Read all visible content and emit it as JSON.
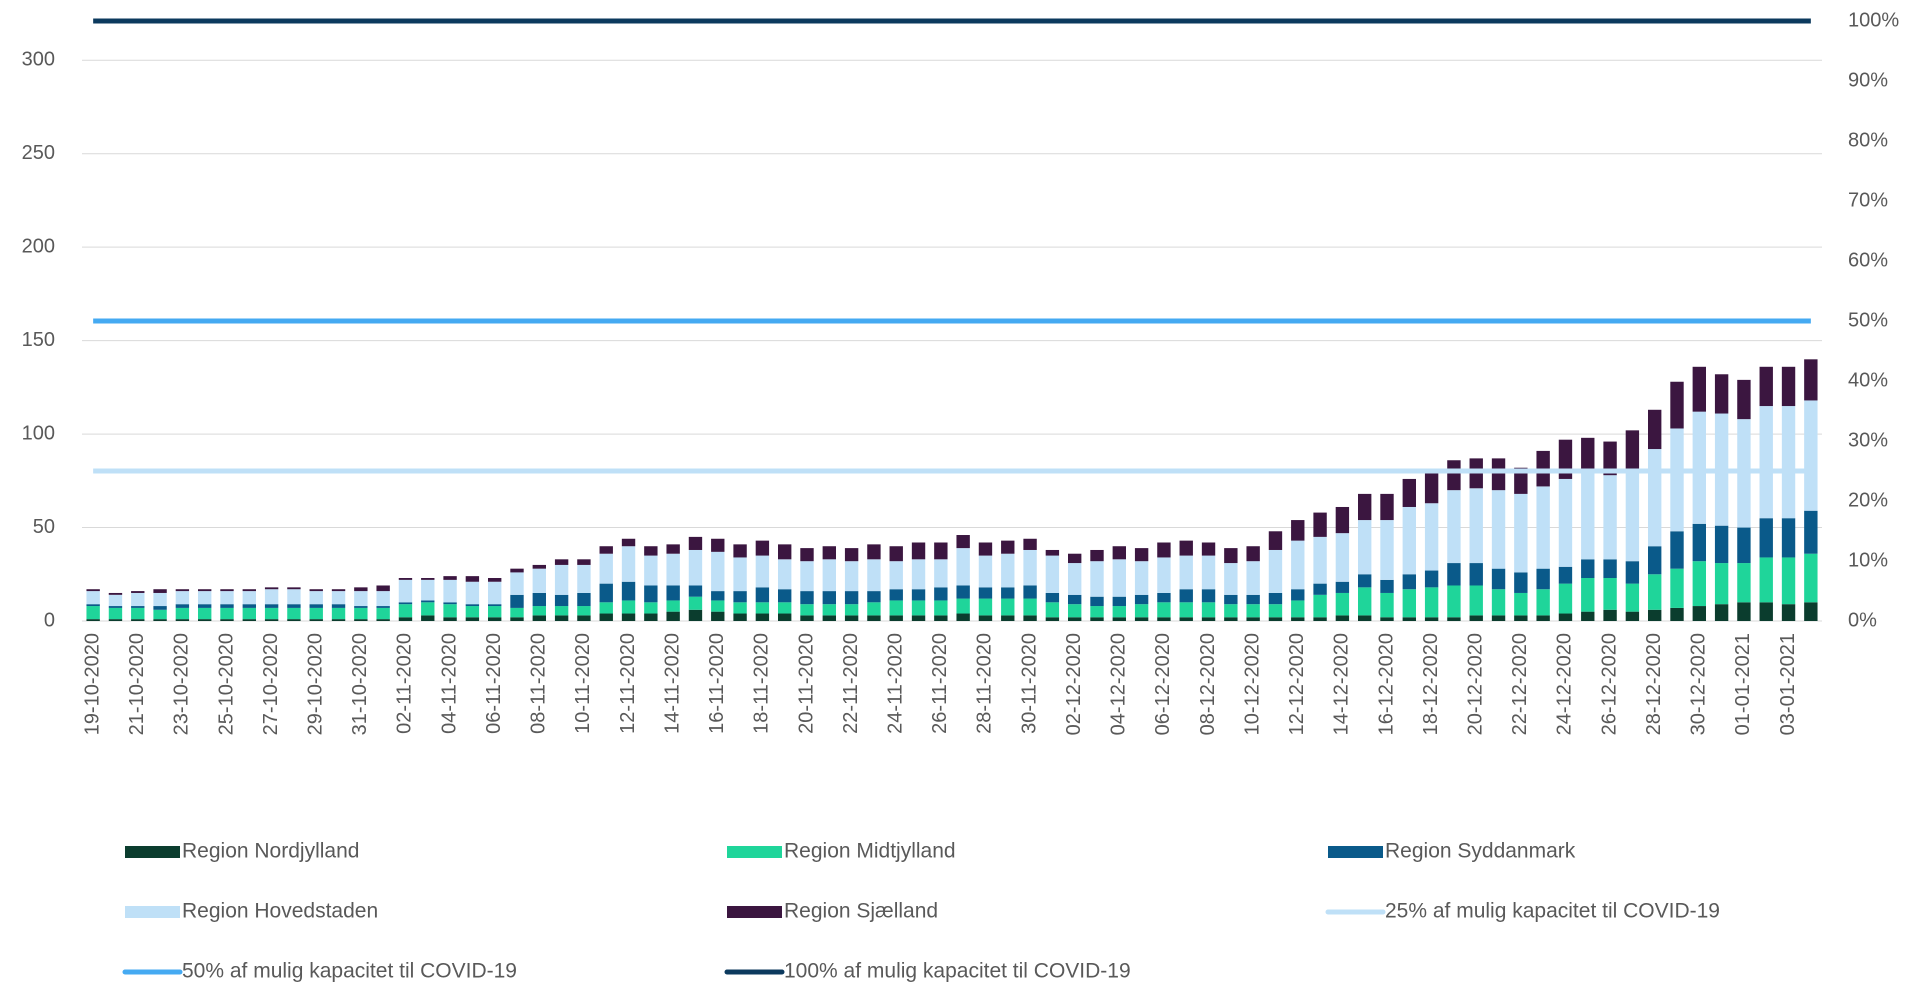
{
  "chart_data": {
    "type": "bar",
    "stacked": true,
    "legend": "bottom",
    "grid": true,
    "categories": [
      "19-10-2020",
      null,
      "21-10-2020",
      null,
      "23-10-2020",
      null,
      "25-10-2020",
      null,
      "27-10-2020",
      null,
      "29-10-2020",
      null,
      "31-10-2020",
      null,
      "02-11-2020",
      null,
      "04-11-2020",
      null,
      "06-11-2020",
      null,
      "08-11-2020",
      null,
      "10-11-2020",
      null,
      "12-11-2020",
      null,
      "14-11-2020",
      null,
      "16-11-2020",
      null,
      "18-11-2020",
      null,
      "20-11-2020",
      null,
      "22-11-2020",
      null,
      "24-11-2020",
      null,
      "26-11-2020",
      null,
      "28-11-2020",
      null,
      "30-11-2020",
      null,
      "02-12-2020",
      null,
      "04-12-2020",
      null,
      "06-12-2020",
      null,
      "08-12-2020",
      null,
      "10-12-2020",
      null,
      "12-12-2020",
      null,
      "14-12-2020",
      null,
      "16-12-2020",
      null,
      "18-12-2020",
      null,
      "20-12-2020",
      null,
      "22-12-2020",
      null,
      "24-12-2020",
      null,
      "26-12-2020",
      null,
      "28-12-2020",
      null,
      "30-12-2020",
      null,
      "01-01-2021",
      null,
      "03-01-2021",
      null
    ],
    "ylim": [
      0,
      321
    ],
    "yticks": [
      0,
      50,
      100,
      150,
      200,
      250,
      300
    ],
    "y2lim": [
      0,
      100
    ],
    "y2ticks": [
      {
        "value": 0,
        "label": "0%"
      },
      {
        "value": 10,
        "label": "10%"
      },
      {
        "value": 20,
        "label": "20%"
      },
      {
        "value": 30,
        "label": "30%"
      },
      {
        "value": 40,
        "label": "40%"
      },
      {
        "value": 50,
        "label": "50%"
      },
      {
        "value": 60,
        "label": "60%"
      },
      {
        "value": 70,
        "label": "70%"
      },
      {
        "value": 80,
        "label": "80%"
      },
      {
        "value": 90,
        "label": "90%"
      },
      {
        "value": 100,
        "label": "100%"
      }
    ],
    "series": [
      {
        "name": "Region Nordjylland",
        "color": "#0b3d2e",
        "values": [
          1,
          1,
          1,
          1,
          1,
          1,
          1,
          1,
          1,
          1,
          1,
          1,
          1,
          1,
          2,
          3,
          2,
          2,
          2,
          2,
          3,
          3,
          3,
          4,
          4,
          4,
          5,
          6,
          5,
          4,
          4,
          4,
          3,
          3,
          3,
          3,
          3,
          3,
          3,
          4,
          3,
          3,
          3,
          2,
          2,
          2,
          2,
          2,
          2,
          2,
          2,
          2,
          2,
          2,
          2,
          2,
          3,
          3,
          2,
          2,
          2,
          2,
          3,
          3,
          3,
          3,
          4,
          5,
          6,
          5,
          6,
          7,
          8,
          9,
          10,
          10,
          9,
          10
        ]
      },
      {
        "name": "Region Midtjylland",
        "color": "#1fd59a",
        "values": [
          7,
          6,
          6,
          5,
          6,
          6,
          6,
          6,
          6,
          6,
          6,
          6,
          6,
          6,
          7,
          7,
          7,
          6,
          6,
          5,
          5,
          5,
          5,
          6,
          7,
          6,
          6,
          7,
          6,
          6,
          6,
          6,
          6,
          6,
          6,
          7,
          8,
          8,
          8,
          8,
          9,
          9,
          9,
          8,
          7,
          6,
          6,
          7,
          8,
          8,
          8,
          7,
          7,
          7,
          9,
          12,
          12,
          15,
          13,
          15,
          16,
          17,
          16,
          14,
          12,
          14,
          16,
          18,
          17,
          15,
          19,
          21,
          24,
          22,
          21,
          24,
          25,
          26
        ]
      },
      {
        "name": "Region Syddanmark",
        "color": "#0a5a8a",
        "values": [
          1,
          1,
          1,
          2,
          2,
          2,
          2,
          2,
          2,
          2,
          2,
          2,
          1,
          1,
          1,
          1,
          1,
          1,
          1,
          7,
          7,
          6,
          7,
          10,
          10,
          9,
          8,
          6,
          5,
          6,
          8,
          7,
          7,
          7,
          7,
          6,
          6,
          6,
          7,
          7,
          6,
          6,
          7,
          5,
          5,
          5,
          5,
          5,
          5,
          7,
          7,
          5,
          5,
          6,
          6,
          6,
          6,
          7,
          7,
          8,
          9,
          12,
          12,
          11,
          11,
          11,
          9,
          10,
          10,
          12,
          15,
          20,
          20,
          20,
          19,
          21,
          21,
          23
        ]
      },
      {
        "name": "Region Hovedstaden",
        "color": "#bfe0f7",
        "values": [
          7,
          6,
          7,
          7,
          7,
          7,
          7,
          7,
          8,
          8,
          7,
          7,
          8,
          8,
          12,
          11,
          12,
          12,
          12,
          12,
          13,
          16,
          15,
          16,
          19,
          16,
          17,
          19,
          21,
          18,
          17,
          16,
          16,
          17,
          16,
          17,
          15,
          16,
          15,
          20,
          17,
          18,
          19,
          20,
          17,
          19,
          20,
          18,
          19,
          18,
          18,
          17,
          18,
          23,
          26,
          25,
          26,
          29,
          32,
          36,
          36,
          39,
          40,
          42,
          42,
          44,
          47,
          48,
          45,
          49,
          52,
          55,
          60,
          60,
          58,
          60,
          60,
          59
        ]
      },
      {
        "name": "Region Sjælland",
        "color": "#3b1640",
        "values": [
          1,
          1,
          1,
          2,
          1,
          1,
          1,
          1,
          1,
          1,
          1,
          1,
          2,
          3,
          1,
          1,
          2,
          3,
          2,
          2,
          2,
          3,
          3,
          4,
          4,
          5,
          5,
          7,
          7,
          7,
          8,
          8,
          7,
          7,
          7,
          8,
          8,
          9,
          9,
          7,
          7,
          7,
          6,
          3,
          5,
          6,
          7,
          7,
          8,
          8,
          7,
          8,
          8,
          10,
          11,
          13,
          14,
          14,
          14,
          15,
          17,
          16,
          16,
          17,
          14,
          19,
          21,
          17,
          18,
          21,
          21,
          25,
          24,
          21,
          21,
          21,
          21,
          22
        ]
      },
      {
        "name": "25% af mulig kapacitet til COVID-19",
        "type": "line",
        "axis": "y2",
        "color": "#bfe0f7",
        "values": [
          25,
          25,
          25,
          25,
          25,
          25,
          25,
          25,
          25,
          25,
          25,
          25,
          25,
          25,
          25,
          25,
          25,
          25,
          25,
          25,
          25,
          25,
          25,
          25,
          25,
          25,
          25,
          25,
          25,
          25,
          25,
          25,
          25,
          25,
          25,
          25,
          25,
          25,
          25,
          25,
          25,
          25,
          25,
          25,
          25,
          25,
          25,
          25,
          25,
          25,
          25,
          25,
          25,
          25,
          25,
          25,
          25,
          25,
          25,
          25,
          25,
          25,
          25,
          25,
          25,
          25,
          25,
          25,
          25,
          25,
          25,
          25,
          25,
          25,
          25,
          25,
          25,
          25
        ]
      },
      {
        "name": "50% af mulig kapacitet til COVID-19",
        "type": "line",
        "axis": "y2",
        "color": "#45aaf2",
        "values": [
          50,
          50,
          50,
          50,
          50,
          50,
          50,
          50,
          50,
          50,
          50,
          50,
          50,
          50,
          50,
          50,
          50,
          50,
          50,
          50,
          50,
          50,
          50,
          50,
          50,
          50,
          50,
          50,
          50,
          50,
          50,
          50,
          50,
          50,
          50,
          50,
          50,
          50,
          50,
          50,
          50,
          50,
          50,
          50,
          50,
          50,
          50,
          50,
          50,
          50,
          50,
          50,
          50,
          50,
          50,
          50,
          50,
          50,
          50,
          50,
          50,
          50,
          50,
          50,
          50,
          50,
          50,
          50,
          50,
          50,
          50,
          50,
          50,
          50,
          50,
          50,
          50,
          50
        ]
      },
      {
        "name": "100% af mulig kapacitet til COVID-19",
        "type": "line",
        "axis": "y2",
        "color": "#0c3a5e",
        "values": [
          100,
          100,
          100,
          100,
          100,
          100,
          100,
          100,
          100,
          100,
          100,
          100,
          100,
          100,
          100,
          100,
          100,
          100,
          100,
          100,
          100,
          100,
          100,
          100,
          100,
          100,
          100,
          100,
          100,
          100,
          100,
          100,
          100,
          100,
          100,
          100,
          100,
          100,
          100,
          100,
          100,
          100,
          100,
          100,
          100,
          100,
          100,
          100,
          100,
          100,
          100,
          100,
          100,
          100,
          100,
          100,
          100,
          100,
          100,
          100,
          100,
          100,
          100,
          100,
          100,
          100,
          100,
          100,
          100,
          100,
          100,
          100,
          100,
          100,
          100,
          100,
          100,
          100
        ]
      }
    ]
  }
}
